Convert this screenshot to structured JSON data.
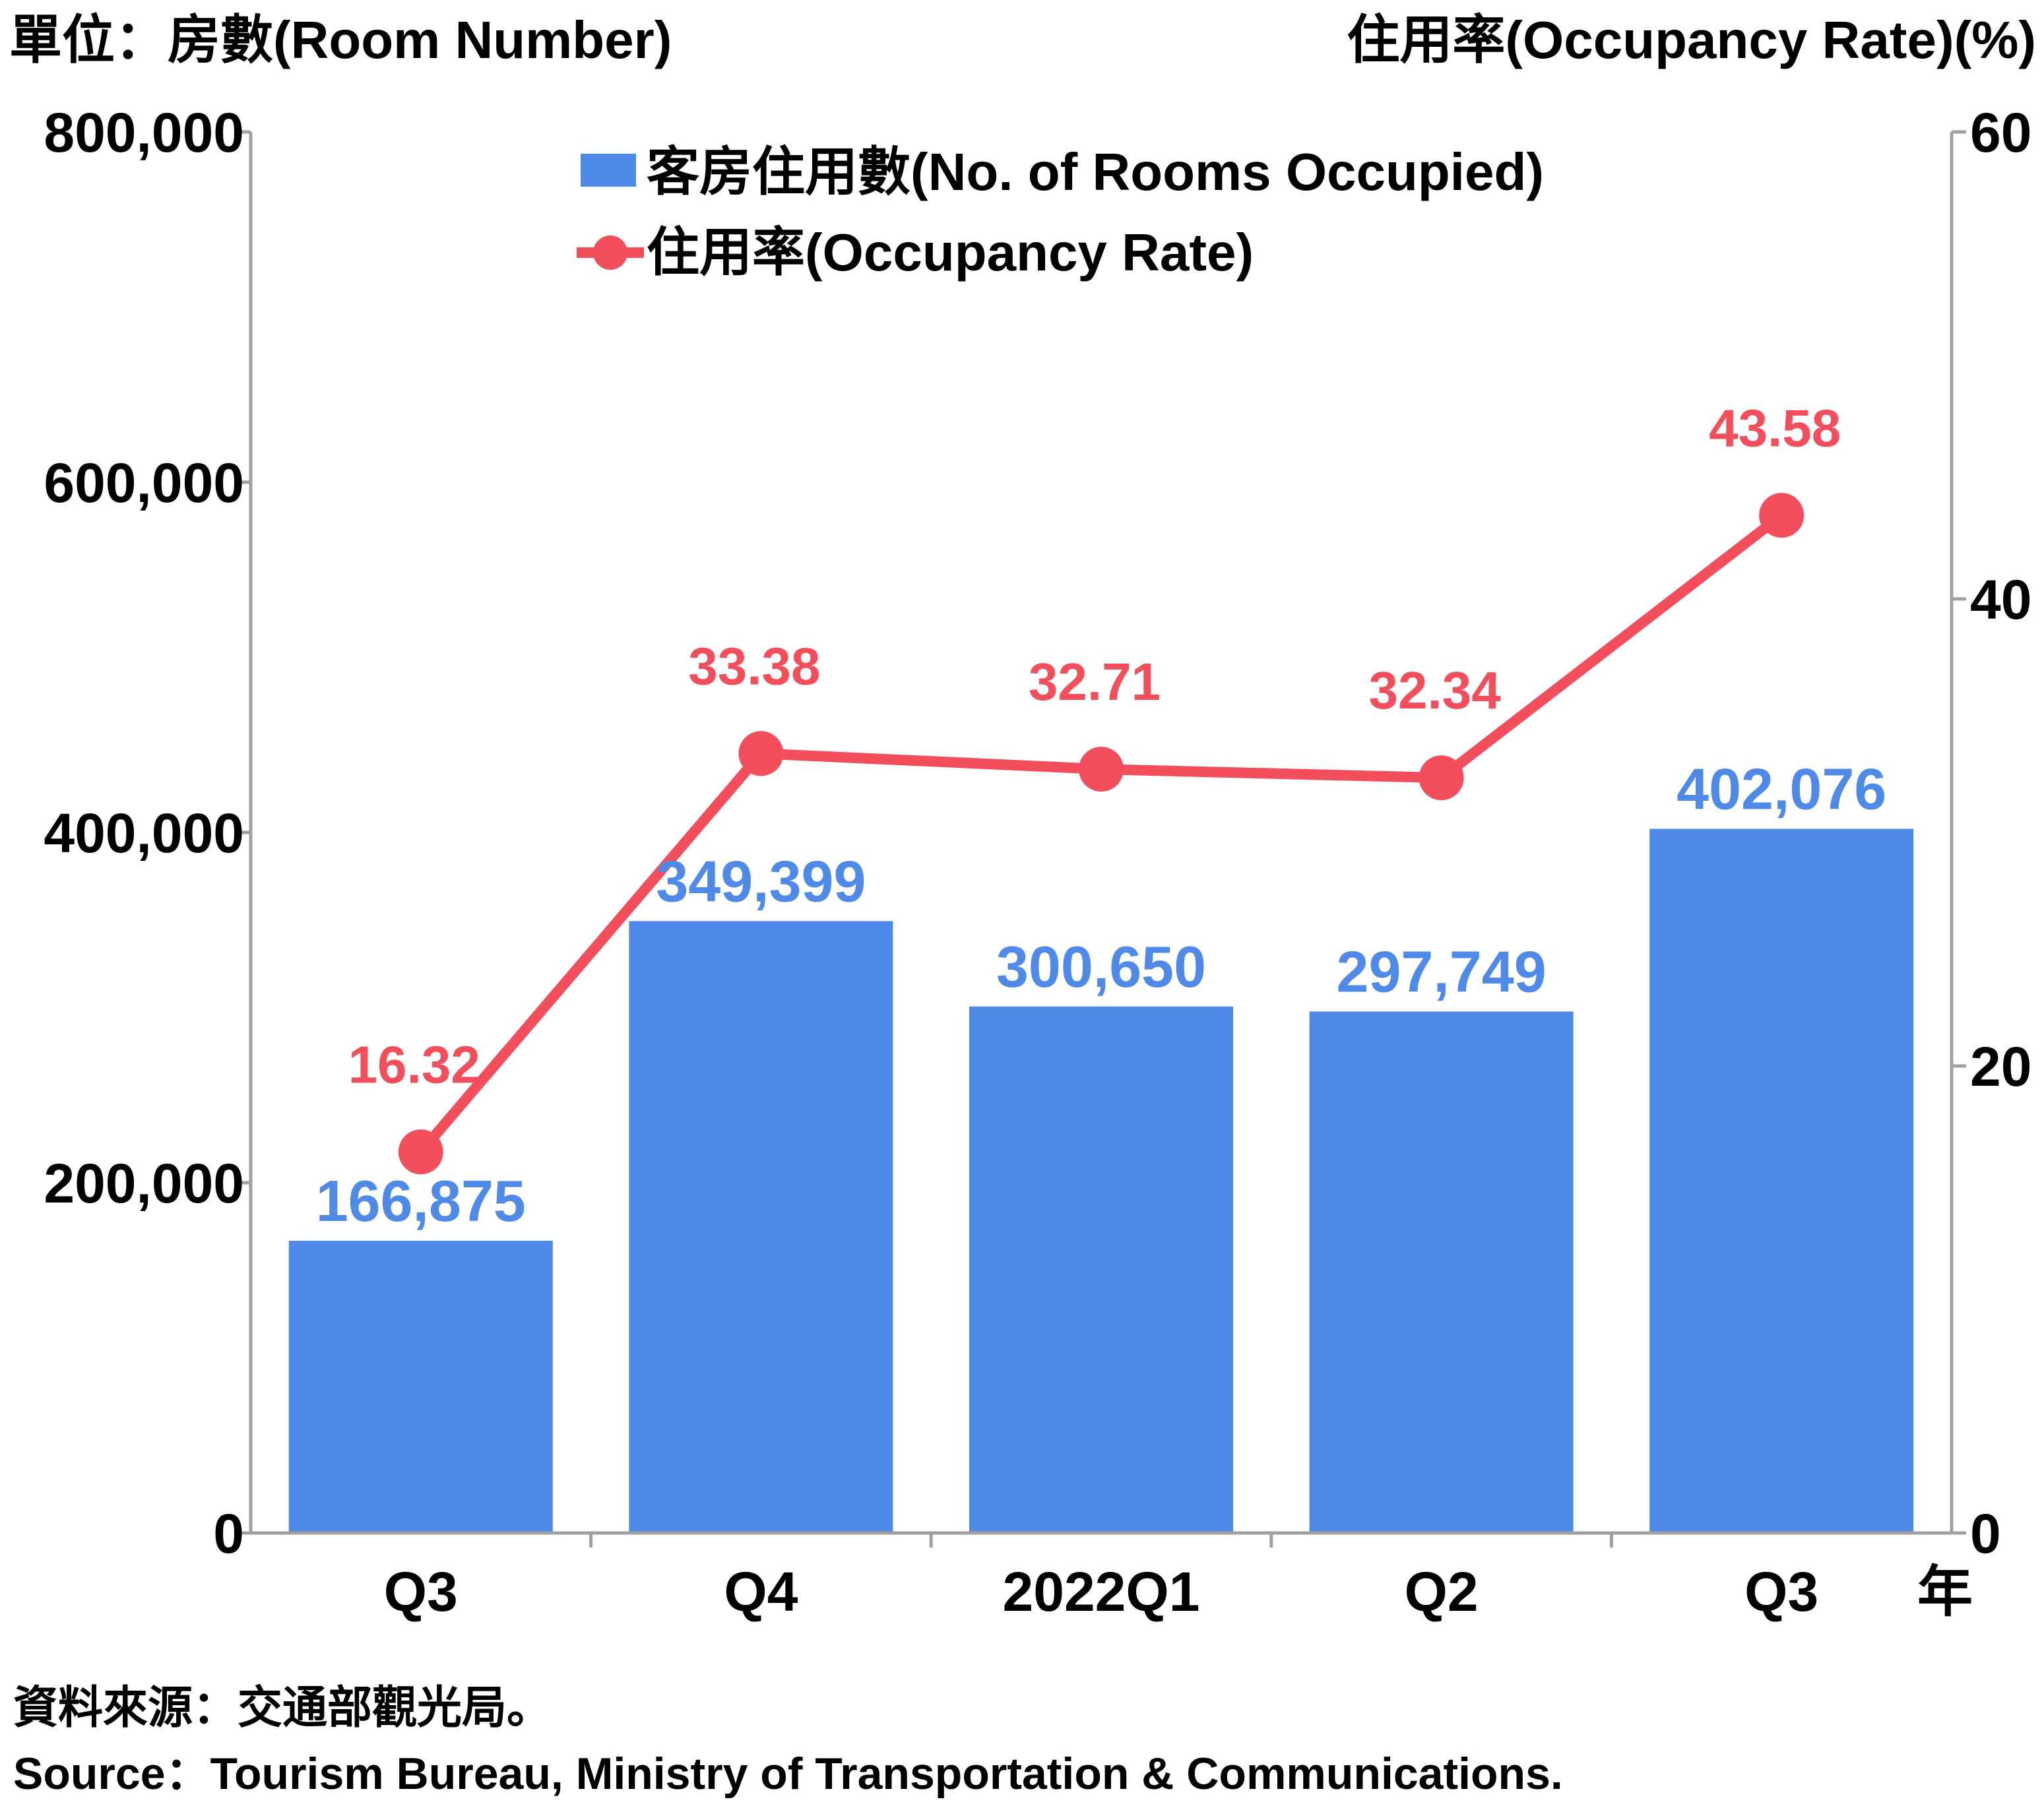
{
  "left_unit_label": "單位：房數(Room Number)",
  "right_unit_label": "住用率(Occupancy Rate)(%)",
  "year_label": "年",
  "legend": {
    "bars": "客房住用數(No. of Rooms Occupied)",
    "line": "住用率(Occupancy Rate)"
  },
  "source": {
    "zh": "資料來源：交通部觀光局。",
    "en": "Source：Tourism Bureau, Ministry of Transportation & Communications."
  },
  "colors": {
    "bar": "#4f8ae8",
    "line": "#f24e5c",
    "axis": "#a0a0a0"
  },
  "chart_data": {
    "type": "bar",
    "categories": [
      "Q3",
      "Q4",
      "2022Q1",
      "Q2",
      "Q3"
    ],
    "series": [
      {
        "name": "客房住用數(No. of Rooms Occupied)",
        "type": "bar",
        "axis": "left",
        "values": [
          166875,
          349399,
          300650,
          297749,
          402076
        ],
        "labels": [
          "166,875",
          "349,399",
          "300,650",
          "297,749",
          "402,076"
        ]
      },
      {
        "name": "住用率(Occupancy Rate)",
        "type": "line",
        "axis": "right",
        "values": [
          16.32,
          33.38,
          32.71,
          32.34,
          43.58
        ],
        "labels": [
          "16.32",
          "33.38",
          "32.71",
          "32.34",
          "43.58"
        ]
      }
    ],
    "y_left": {
      "min": 0,
      "max": 800000,
      "ticks": [
        "0",
        "200,000",
        "400,000",
        "600,000",
        "800,000"
      ]
    },
    "y_right": {
      "min": 0,
      "max": 60,
      "ticks": [
        "0",
        "20",
        "40",
        "60"
      ]
    },
    "legend_position": "top-center",
    "grid": false
  }
}
